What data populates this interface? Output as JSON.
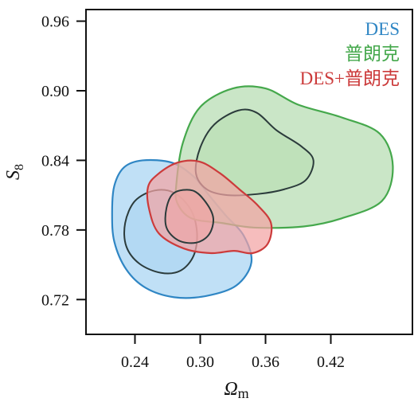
{
  "chart_data": {
    "type": "contour",
    "title": "",
    "xlabel": "Ωm",
    "xlabel_base": "Ω",
    "xlabel_sub": "m",
    "ylabel": "S8",
    "ylabel_base": "S",
    "ylabel_sub": "8",
    "xlim": [
      0.195,
      0.495
    ],
    "ylim": [
      0.69,
      0.97
    ],
    "xticks": [
      0.24,
      0.3,
      0.36,
      0.42
    ],
    "xtick_labels": [
      "0.24",
      "0.30",
      "0.36",
      "0.42"
    ],
    "yticks": [
      0.72,
      0.78,
      0.84,
      0.9,
      0.96
    ],
    "ytick_labels": [
      "0.72",
      "0.78",
      "0.84",
      "0.90",
      "0.96"
    ],
    "grid": false,
    "legend_position": "top-right",
    "series": [
      {
        "name": "DES",
        "color": "#2f86c4",
        "fill": "#a8d4f2",
        "contours": [
          {
            "level": "outer",
            "points": [
              [
                0.247,
                0.84
              ],
              [
                0.23,
                0.834
              ],
              [
                0.221,
                0.818
              ],
              [
                0.219,
                0.795
              ],
              [
                0.221,
                0.77
              ],
              [
                0.232,
                0.746
              ],
              [
                0.25,
                0.73
              ],
              [
                0.276,
                0.722
              ],
              [
                0.305,
                0.723
              ],
              [
                0.333,
                0.732
              ],
              [
                0.347,
                0.752
              ],
              [
                0.34,
                0.775
              ],
              [
                0.323,
                0.793
              ],
              [
                0.308,
                0.81
              ],
              [
                0.294,
                0.826
              ],
              [
                0.274,
                0.838
              ]
            ]
          },
          {
            "level": "inner",
            "points": [
              [
                0.258,
                0.814
              ],
              [
                0.24,
                0.805
              ],
              [
                0.231,
                0.786
              ],
              [
                0.232,
                0.766
              ],
              [
                0.244,
                0.751
              ],
              [
                0.264,
                0.743
              ],
              [
                0.282,
                0.745
              ],
              [
                0.294,
                0.758
              ],
              [
                0.297,
                0.778
              ],
              [
                0.291,
                0.798
              ],
              [
                0.276,
                0.812
              ]
            ]
          }
        ]
      },
      {
        "name": "普朗克",
        "color": "#45a84c",
        "fill": "#b6ddb1",
        "contours": [
          {
            "level": "outer",
            "points": [
              [
                0.278,
                0.819
              ],
              [
                0.284,
                0.855
              ],
              [
                0.3,
                0.886
              ],
              [
                0.33,
                0.902
              ],
              [
                0.36,
                0.902
              ],
              [
                0.39,
                0.888
              ],
              [
                0.43,
                0.877
              ],
              [
                0.465,
                0.863
              ],
              [
                0.477,
                0.835
              ],
              [
                0.467,
                0.805
              ],
              [
                0.43,
                0.79
              ],
              [
                0.395,
                0.783
              ],
              [
                0.35,
                0.782
              ],
              [
                0.32,
                0.786
              ],
              [
                0.292,
                0.79
              ],
              [
                0.279,
                0.803
              ]
            ]
          },
          {
            "level": "inner",
            "points": [
              [
                0.296,
                0.829
              ],
              [
                0.3,
                0.851
              ],
              [
                0.313,
                0.871
              ],
              [
                0.335,
                0.883
              ],
              [
                0.352,
                0.881
              ],
              [
                0.37,
                0.866
              ],
              [
                0.393,
                0.852
              ],
              [
                0.404,
                0.84
              ],
              [
                0.397,
                0.823
              ],
              [
                0.377,
                0.815
              ],
              [
                0.353,
                0.811
              ],
              [
                0.325,
                0.81
              ],
              [
                0.306,
                0.815
              ]
            ]
          }
        ]
      },
      {
        "name": "DES+普朗克",
        "color": "#cc3b3b",
        "fill": "#f2a3a3",
        "contours": [
          {
            "level": "outer",
            "points": [
              [
                0.261,
                0.828
              ],
              [
                0.279,
                0.838
              ],
              [
                0.299,
                0.839
              ],
              [
                0.318,
                0.829
              ],
              [
                0.336,
                0.815
              ],
              [
                0.352,
                0.802
              ],
              [
                0.365,
                0.786
              ],
              [
                0.362,
                0.768
              ],
              [
                0.348,
                0.76
              ],
              [
                0.331,
                0.762
              ],
              [
                0.31,
                0.76
              ],
              [
                0.285,
                0.764
              ],
              [
                0.262,
                0.777
              ],
              [
                0.253,
                0.798
              ],
              [
                0.252,
                0.817
              ]
            ]
          },
          {
            "level": "inner",
            "points": [
              [
                0.276,
                0.812
              ],
              [
                0.293,
                0.814
              ],
              [
                0.305,
                0.804
              ],
              [
                0.312,
                0.79
              ],
              [
                0.308,
                0.776
              ],
              [
                0.296,
                0.769
              ],
              [
                0.28,
                0.771
              ],
              [
                0.269,
                0.782
              ],
              [
                0.269,
                0.799
              ]
            ]
          }
        ]
      }
    ]
  }
}
